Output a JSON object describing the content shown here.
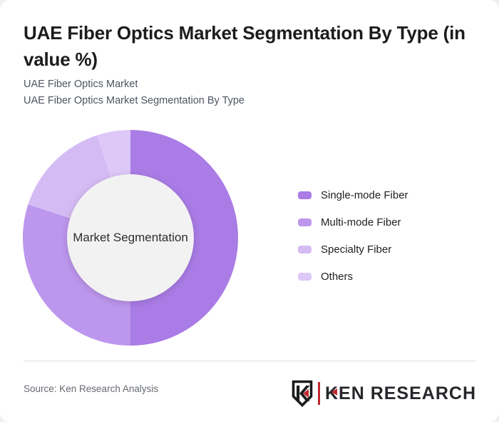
{
  "card": {
    "title": "UAE Fiber Optics Market Segmentation By Type (in value %)",
    "subtitle_lines": [
      "UAE Fiber Optics Market",
      "UAE Fiber Optics Market Segmentation By Type"
    ]
  },
  "chart_data": {
    "type": "pie",
    "subtype": "donut",
    "title": "UAE Fiber Optics Market Segmentation By Type (in value %)",
    "center_label": "Market Segmentation",
    "categories": [
      "Single-mode Fiber",
      "Multi-mode Fiber",
      "Specialty Fiber",
      "Others"
    ],
    "values": [
      50,
      30,
      15,
      5
    ],
    "value_unit": "%",
    "colors": [
      "#aa7ce6",
      "#bd96ed",
      "#d5bbf4",
      "#ddc8f8"
    ],
    "hole_color": "#f2f2f3",
    "start_angle_deg": 0,
    "direction": "clockwise",
    "legend_position": "right",
    "data_labels_shown": false
  },
  "footer": {
    "source_text": "Source: Ken Research Analysis",
    "logo_monogram": "K",
    "logo_text": "KEN RESEARCH",
    "logo_accent_color": "#c1272d"
  }
}
